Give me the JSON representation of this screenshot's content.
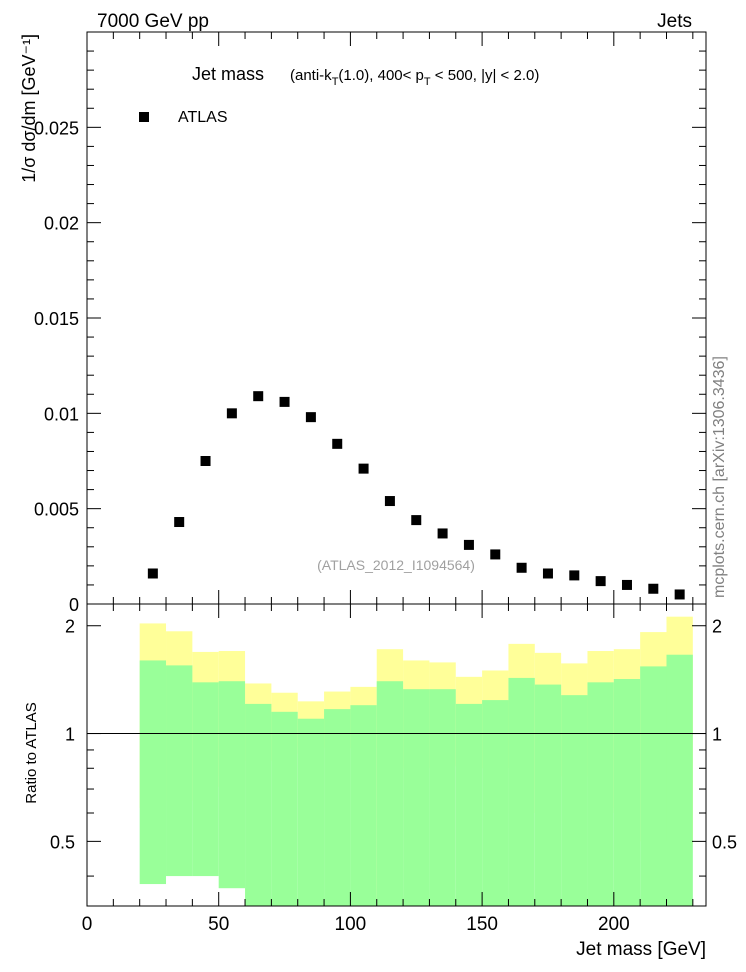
{
  "header": {
    "left_label": "7000 GeV pp",
    "right_label": "Jets"
  },
  "watermark": "mcplots.cern.ch [arXiv:1306.3436]",
  "chart_data": [
    {
      "type": "scatter",
      "title": "Jet mass",
      "subtitle": {
        "prefix": "(anti-k",
        "sub1": "T",
        "mid": "(1.0), 400< p",
        "sub2": "T",
        "suffix": " < 500, |y| < 2.0)"
      },
      "ylabel": "1/σ dσ/dm [GeV⁻¹]",
      "xlim": [
        0,
        235
      ],
      "ylim": [
        0,
        0.03
      ],
      "yticks": [
        0,
        0.005,
        0.01,
        0.015,
        0.02,
        0.025
      ],
      "ytick_labels": [
        "0",
        "0.005",
        "0.01",
        "0.015",
        "0.02",
        "0.025"
      ],
      "reference": "(ATLAS_2012_I1094564)",
      "legend": {
        "placement": "top-left",
        "entries": [
          "ATLAS"
        ]
      },
      "series": [
        {
          "name": "ATLAS",
          "x": [
            25,
            35,
            45,
            55,
            65,
            75,
            85,
            95,
            105,
            115,
            125,
            135,
            145,
            155,
            165,
            175,
            185,
            195,
            205,
            215,
            225
          ],
          "y": [
            0.0016,
            0.0043,
            0.0075,
            0.01,
            0.0109,
            0.0106,
            0.0098,
            0.0084,
            0.0071,
            0.0054,
            0.0044,
            0.0037,
            0.0031,
            0.0026,
            0.0019,
            0.0016,
            0.0015,
            0.0012,
            0.001,
            0.0008,
            0.0005
          ]
        }
      ]
    },
    {
      "type": "area",
      "ylabel": "Ratio to ATLAS",
      "xlabel": "Jet mass [GeV]",
      "xlim": [
        0,
        235
      ],
      "ylim": [
        0.33,
        2.3
      ],
      "xticks": [
        0,
        50,
        100,
        150,
        200
      ],
      "xtick_labels": [
        "0",
        "50",
        "100",
        "150",
        "200"
      ],
      "yticks": [
        0.5,
        1,
        2
      ],
      "ytick_labels": [
        "0.5",
        "1",
        "2"
      ],
      "reference_line": 1,
      "bins": [
        20,
        30,
        40,
        50,
        60,
        70,
        80,
        90,
        100,
        110,
        120,
        130,
        140,
        150,
        160,
        170,
        180,
        190,
        200,
        210,
        220,
        230
      ],
      "bands": [
        {
          "color": "#ffff99",
          "lower": [
            0.62,
            0.65,
            0.76,
            0.71,
            0.84,
            0.88,
            0.92,
            0.91,
            0.91,
            0.33,
            0.8,
            0.81,
            0.82,
            0.8,
            0.6,
            0.7,
            0.76,
            0.62,
            0.6,
            0.5,
            0.49
          ],
          "upper": [
            2.03,
            1.93,
            1.69,
            1.7,
            1.38,
            1.3,
            1.23,
            1.31,
            1.35,
            1.72,
            1.6,
            1.58,
            1.44,
            1.5,
            1.78,
            1.68,
            1.57,
            1.7,
            1.72,
            1.92,
            2.12
          ]
        },
        {
          "color": "#99ff99",
          "lower": [
            0.38,
            0.4,
            0.4,
            0.37,
            0.33,
            0.33,
            0.33,
            0.33,
            0.33,
            0.33,
            0.33,
            0.33,
            0.33,
            0.33,
            0.33,
            0.33,
            0.33,
            0.33,
            0.33,
            0.33,
            0.33
          ],
          "upper": [
            1.6,
            1.55,
            1.39,
            1.4,
            1.21,
            1.15,
            1.1,
            1.17,
            1.2,
            1.4,
            1.33,
            1.33,
            1.21,
            1.24,
            1.43,
            1.37,
            1.28,
            1.39,
            1.42,
            1.54,
            1.66
          ]
        }
      ]
    }
  ]
}
